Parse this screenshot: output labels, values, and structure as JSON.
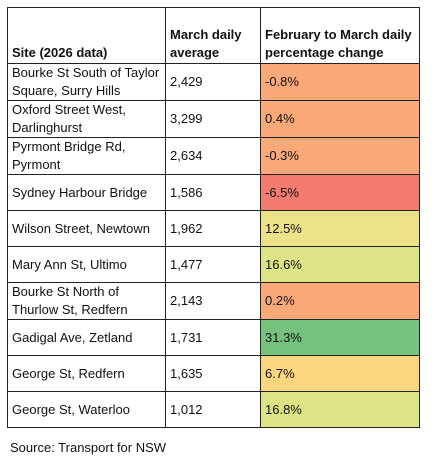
{
  "table": {
    "headers": {
      "site": "Site (2026 data)",
      "average": "March daily average",
      "change": "February to March daily percentage change"
    },
    "rows": [
      {
        "site": "Bourke St South of Taylor Square, Surry Hills",
        "average": "2,429",
        "change": "-0.8%",
        "color": "#f9a978"
      },
      {
        "site": "Oxford Street West, Darlinghurst",
        "average": "3,299",
        "change": "0.4%",
        "color": "#f9a978"
      },
      {
        "site": "Pyrmont Bridge Rd, Pyrmont",
        "average": "2,634",
        "change": "-0.3%",
        "color": "#f9a978"
      },
      {
        "site": "Sydney Harbour Bridge",
        "average": "1,586",
        "change": "-6.5%",
        "color": "#f47b70"
      },
      {
        "site": "Wilson Street, Newtown",
        "average": "1,962",
        "change": "12.5%",
        "color": "#ede288"
      },
      {
        "site": "Mary Ann St, Ultimo",
        "average": "1,477",
        "change": "16.6%",
        "color": "#dde485"
      },
      {
        "site": "Bourke St North of Thurlow St, Redfern",
        "average": "2,143",
        "change": "0.2%",
        "color": "#f9a978"
      },
      {
        "site": "Gadigal Ave, Zetland",
        "average": "1,731",
        "change": "31.3%",
        "color": "#74c27c"
      },
      {
        "site": "George St, Redfern",
        "average": "1,635",
        "change": "6.7%",
        "color": "#fcd67f"
      },
      {
        "site": "George St, Waterloo",
        "average": "1,012",
        "change": "16.8%",
        "color": "#dde485"
      }
    ]
  },
  "source": "Source: Transport for NSW"
}
